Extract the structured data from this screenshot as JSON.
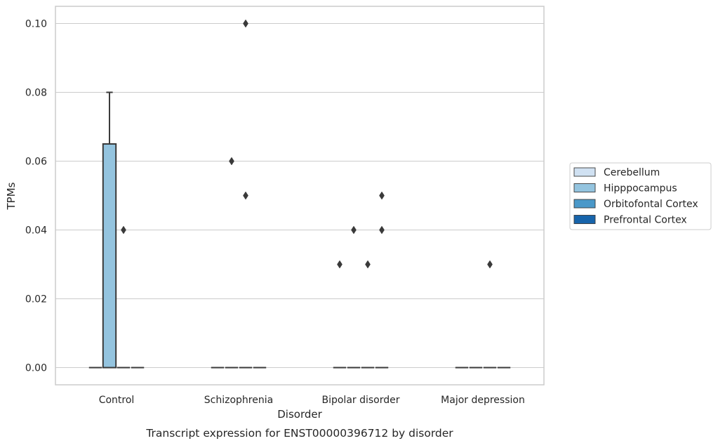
{
  "chart_data": {
    "type": "box",
    "xlabel": "Disorder",
    "ylabel": "TPMs",
    "caption": "Transcript expression for ENST00000396712 by disorder",
    "categories": [
      "Control",
      "Schizophrenia",
      "Bipolar disorder",
      "Major depression"
    ],
    "ylim": [
      -0.005,
      0.105
    ],
    "yticks": [
      0.0,
      0.02,
      0.04,
      0.06,
      0.08,
      0.1
    ],
    "ytick_labels": [
      "0.00",
      "0.02",
      "0.04",
      "0.06",
      "0.08",
      "0.10"
    ],
    "grid": true,
    "legend_position": "right",
    "series": [
      {
        "name": "Cerebellum",
        "color": "#d0e1f2",
        "boxes": [
          {
            "category": "Control",
            "q1": 0,
            "median": 0,
            "q3": 0,
            "whisker_low": 0,
            "whisker_high": 0,
            "outliers": []
          },
          {
            "category": "Schizophrenia",
            "q1": 0,
            "median": 0,
            "q3": 0,
            "whisker_low": 0,
            "whisker_high": 0,
            "outliers": []
          },
          {
            "category": "Bipolar disorder",
            "q1": 0,
            "median": 0,
            "q3": 0,
            "whisker_low": 0,
            "whisker_high": 0,
            "outliers": [
              0.03
            ]
          },
          {
            "category": "Major depression",
            "q1": 0,
            "median": 0,
            "q3": 0,
            "whisker_low": 0,
            "whisker_high": 0,
            "outliers": []
          }
        ]
      },
      {
        "name": "Hipppocampus",
        "color": "#94c4df",
        "boxes": [
          {
            "category": "Control",
            "q1": 0,
            "median": 0,
            "q3": 0.065,
            "whisker_low": 0,
            "whisker_high": 0.08,
            "outliers": []
          },
          {
            "category": "Schizophrenia",
            "q1": 0,
            "median": 0,
            "q3": 0,
            "whisker_low": 0,
            "whisker_high": 0,
            "outliers": [
              0.06
            ]
          },
          {
            "category": "Bipolar disorder",
            "q1": 0,
            "median": 0,
            "q3": 0,
            "whisker_low": 0,
            "whisker_high": 0,
            "outliers": [
              0.04
            ]
          },
          {
            "category": "Major depression",
            "q1": 0,
            "median": 0,
            "q3": 0,
            "whisker_low": 0,
            "whisker_high": 0,
            "outliers": []
          }
        ]
      },
      {
        "name": "Orbitofontal Cortex",
        "color": "#4a98c9",
        "boxes": [
          {
            "category": "Control",
            "q1": 0,
            "median": 0,
            "q3": 0,
            "whisker_low": 0,
            "whisker_high": 0,
            "outliers": [
              0.04
            ]
          },
          {
            "category": "Schizophrenia",
            "q1": 0,
            "median": 0,
            "q3": 0,
            "whisker_low": 0,
            "whisker_high": 0,
            "outliers": [
              0.1,
              0.05
            ]
          },
          {
            "category": "Bipolar disorder",
            "q1": 0,
            "median": 0,
            "q3": 0,
            "whisker_low": 0,
            "whisker_high": 0,
            "outliers": [
              0.03
            ]
          },
          {
            "category": "Major depression",
            "q1": 0,
            "median": 0,
            "q3": 0,
            "whisker_low": 0,
            "whisker_high": 0,
            "outliers": [
              0.03
            ]
          }
        ]
      },
      {
        "name": "Prefrontal Cortex",
        "color": "#1764ab",
        "boxes": [
          {
            "category": "Control",
            "q1": 0,
            "median": 0,
            "q3": 0,
            "whisker_low": 0,
            "whisker_high": 0,
            "outliers": []
          },
          {
            "category": "Schizophrenia",
            "q1": 0,
            "median": 0,
            "q3": 0,
            "whisker_low": 0,
            "whisker_high": 0,
            "outliers": []
          },
          {
            "category": "Bipolar disorder",
            "q1": 0,
            "median": 0,
            "q3": 0,
            "whisker_low": 0,
            "whisker_high": 0,
            "outliers": [
              0.05,
              0.04
            ]
          },
          {
            "category": "Major depression",
            "q1": 0,
            "median": 0,
            "q3": 0,
            "whisker_low": 0,
            "whisker_high": 0,
            "outliers": []
          }
        ]
      }
    ]
  }
}
